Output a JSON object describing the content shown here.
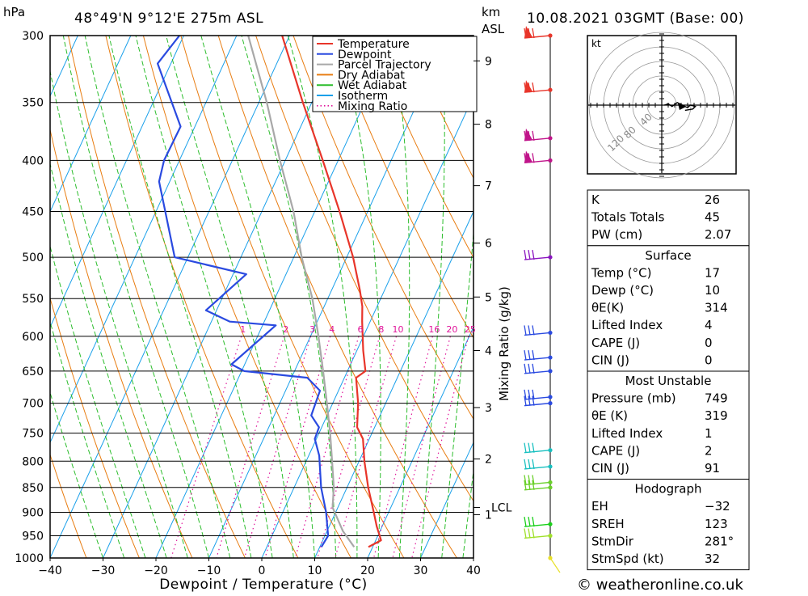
{
  "header": {
    "hpa": "hPa",
    "location": "48°49'N  9°12'E  275m  ASL",
    "km": "km",
    "asl": "ASL",
    "datetime": "10.08.2021  03GMT  (Base: 00)"
  },
  "footer": {
    "copyright": "© weatheronline.co.uk"
  },
  "chart_data": {
    "type": "skew-t",
    "xlabel": "Dewpoint / Temperature (°C)",
    "x_ticks": [
      -40,
      -30,
      -20,
      -10,
      0,
      10,
      20,
      30,
      40
    ],
    "xlim": [
      -40,
      40
    ],
    "pressure_levels": [
      300,
      350,
      400,
      450,
      500,
      550,
      600,
      650,
      700,
      750,
      800,
      850,
      900,
      950,
      1000
    ],
    "ylim": [
      1000,
      300
    ],
    "y_scale": "log",
    "km_label": "km",
    "km_ticks": [
      {
        "label": "9",
        "p": 318
      },
      {
        "label": "8",
        "p": 368
      },
      {
        "label": "7",
        "p": 424
      },
      {
        "label": "6",
        "p": 484
      },
      {
        "label": "5",
        "p": 548
      },
      {
        "label": "4",
        "p": 620
      },
      {
        "label": "3",
        "p": 707
      },
      {
        "label": "2",
        "p": 796
      },
      {
        "label": "1",
        "p": 905
      }
    ],
    "lcl": {
      "label": "LCL",
      "p": 890
    },
    "mixing_ratio_axis_label": "Mixing Ratio (g/kg)",
    "mixing_ratio_labels": [
      "1",
      "2",
      "3",
      "4",
      "6",
      "8",
      "10",
      "16",
      "20",
      "25"
    ],
    "legend": {
      "position": "top-right",
      "entries": [
        {
          "name": "Temperature",
          "color": "#e8352a",
          "style": "solid"
        },
        {
          "name": "Dewpoint",
          "color": "#2a4ae0",
          "style": "solid"
        },
        {
          "name": "Parcel Trajectory",
          "color": "#a8a8a8",
          "style": "solid"
        },
        {
          "name": "Dry Adiabat",
          "color": "#e87d12",
          "style": "solid"
        },
        {
          "name": "Wet Adiabat",
          "color": "#2cbd2c",
          "style": "solid"
        },
        {
          "name": "Isotherm",
          "color": "#1aa0ea",
          "style": "solid"
        },
        {
          "name": "Mixing Ratio",
          "color": "#e0149a",
          "style": "dotted"
        }
      ]
    },
    "temperature": [
      {
        "p": 975,
        "t": 19.2
      },
      {
        "p": 960,
        "t": 21
      },
      {
        "p": 930,
        "t": 19
      },
      {
        "p": 900,
        "t": 17.2
      },
      {
        "p": 850,
        "t": 14
      },
      {
        "p": 800,
        "t": 11
      },
      {
        "p": 760,
        "t": 8.8
      },
      {
        "p": 740,
        "t": 6.7
      },
      {
        "p": 700,
        "t": 4.8
      },
      {
        "p": 660,
        "t": 2.2
      },
      {
        "p": 650,
        "t": 3.4
      },
      {
        "p": 620,
        "t": 1.2
      },
      {
        "p": 580,
        "t": -1.5
      },
      {
        "p": 560,
        "t": -2.8
      },
      {
        "p": 540,
        "t": -4.6
      },
      {
        "p": 500,
        "t": -8.8
      },
      {
        "p": 450,
        "t": -15.3
      },
      {
        "p": 400,
        "t": -22.9
      },
      {
        "p": 350,
        "t": -31.7
      },
      {
        "p": 300,
        "t": -41.4
      }
    ],
    "dewpoint": [
      {
        "p": 975,
        "t": 10.3
      },
      {
        "p": 950,
        "t": 10.6
      },
      {
        "p": 900,
        "t": 8.2
      },
      {
        "p": 850,
        "t": 5.1
      },
      {
        "p": 790,
        "t": 2
      },
      {
        "p": 760,
        "t": -0.3
      },
      {
        "p": 740,
        "t": -0.5
      },
      {
        "p": 720,
        "t": -3
      },
      {
        "p": 680,
        "t": -3.5
      },
      {
        "p": 660,
        "t": -7
      },
      {
        "p": 650,
        "t": -19.5
      },
      {
        "p": 640,
        "t": -22.5
      },
      {
        "p": 585,
        "t": -17.5
      },
      {
        "p": 580,
        "t": -26.5
      },
      {
        "p": 565,
        "t": -32
      },
      {
        "p": 520,
        "t": -27.5
      },
      {
        "p": 500,
        "t": -42.5
      },
      {
        "p": 420,
        "t": -52
      },
      {
        "p": 400,
        "t": -52.9
      },
      {
        "p": 370,
        "t": -52.7
      },
      {
        "p": 320,
        "t": -62.5
      },
      {
        "p": 300,
        "t": -60.8
      }
    ],
    "parcel": [
      {
        "p": 975,
        "t": 16.5
      },
      {
        "p": 940,
        "t": 13
      },
      {
        "p": 890,
        "t": 9
      },
      {
        "p": 850,
        "t": 7.5
      },
      {
        "p": 800,
        "t": 4.9
      },
      {
        "p": 750,
        "t": 2.1
      },
      {
        "p": 700,
        "t": -1.1
      },
      {
        "p": 650,
        "t": -4.6
      },
      {
        "p": 600,
        "t": -8.5
      },
      {
        "p": 550,
        "t": -12.9
      },
      {
        "p": 500,
        "t": -18.5
      },
      {
        "p": 450,
        "t": -24
      },
      {
        "p": 400,
        "t": -31
      },
      {
        "p": 350,
        "t": -38.5
      },
      {
        "p": 300,
        "t": -47.8
      }
    ],
    "wind_barbs": [
      {
        "p": 300,
        "color": "#e8352a"
      },
      {
        "p": 340,
        "color": "#e8352a"
      },
      {
        "p": 380,
        "color": "#c0148a"
      },
      {
        "p": 400,
        "color": "#c0148a"
      },
      {
        "p": 500,
        "color": "#8a14c0"
      },
      {
        "p": 595,
        "color": "#2a4ae0"
      },
      {
        "p": 630,
        "color": "#2a4ae0"
      },
      {
        "p": 650,
        "color": "#2a4ae0"
      },
      {
        "p": 690,
        "color": "#2a4ae0"
      },
      {
        "p": 700,
        "color": "#2a4ae0"
      },
      {
        "p": 780,
        "color": "#18c0c0"
      },
      {
        "p": 810,
        "color": "#18c0c0"
      },
      {
        "p": 840,
        "color": "#6ad02a"
      },
      {
        "p": 850,
        "color": "#6ad02a"
      },
      {
        "p": 925,
        "color": "#1ad01a"
      },
      {
        "p": 950,
        "color": "#a0e02a"
      },
      {
        "p": 1000,
        "color": "#e8e02a"
      }
    ],
    "hodograph": {
      "unit": "kt",
      "ring_labels": [
        "40",
        "80",
        "120"
      ],
      "points": [
        [
          2,
          0
        ],
        [
          5,
          1
        ],
        [
          8,
          -1
        ],
        [
          12,
          2
        ],
        [
          16,
          0
        ],
        [
          20,
          -2
        ],
        [
          22,
          0
        ],
        [
          26,
          -1
        ],
        [
          24,
          -3
        ],
        [
          18,
          -4
        ]
      ]
    }
  },
  "table": {
    "indices": [
      {
        "label": "K",
        "value": "26"
      },
      {
        "label": "Totals Totals",
        "value": "45"
      },
      {
        "label": "PW (cm)",
        "value": "2.07"
      }
    ],
    "surface_title": "Surface",
    "surface": [
      {
        "label": "Temp (°C)",
        "value": "17"
      },
      {
        "label": "Dewp (°C)",
        "value": "10"
      },
      {
        "label": "θE(K)",
        "value": "314"
      },
      {
        "label": "Lifted Index",
        "value": "4"
      },
      {
        "label": "CAPE (J)",
        "value": "0"
      },
      {
        "label": "CIN (J)",
        "value": "0"
      }
    ],
    "unstable_title": "Most Unstable",
    "unstable": [
      {
        "label": "Pressure (mb)",
        "value": "749"
      },
      {
        "label": "θE (K)",
        "value": "319"
      },
      {
        "label": "Lifted Index",
        "value": "1"
      },
      {
        "label": "CAPE (J)",
        "value": "2"
      },
      {
        "label": "CIN (J)",
        "value": "91"
      }
    ],
    "hodograph_title": "Hodograph",
    "hodograph": [
      {
        "label": "EH",
        "value": "-32"
      },
      {
        "label": "SREH",
        "value": "123"
      },
      {
        "label": "StmDir",
        "value": "281°"
      },
      {
        "label": "StmSpd (kt)",
        "value": "32"
      }
    ]
  }
}
